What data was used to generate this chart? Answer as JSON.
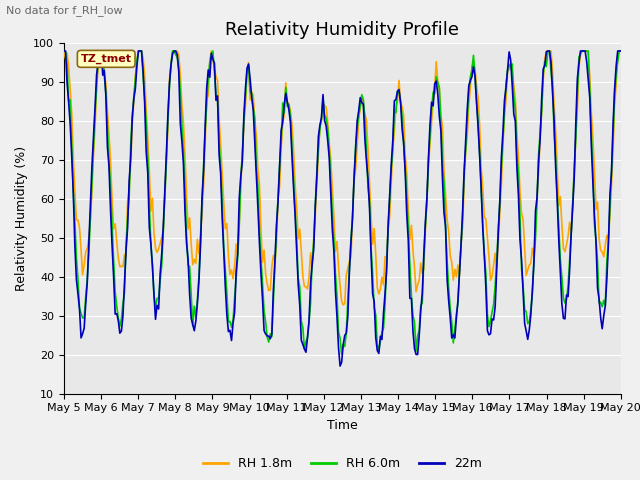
{
  "title": "Relativity Humidity Profile",
  "subtitle": "No data for f_RH_low",
  "xlabel": "Time",
  "ylabel": "Relativity Humidity (%)",
  "ylim": [
    10,
    100
  ],
  "yticks": [
    10,
    20,
    30,
    40,
    50,
    60,
    70,
    80,
    90,
    100
  ],
  "xtick_labels": [
    "May 5",
    "May 6",
    "May 7",
    "May 8",
    "May 9",
    "May 10",
    "May 11",
    "May 12",
    "May 13",
    "May 14",
    "May 15",
    "May 16",
    "May 17",
    "May 18",
    "May 19",
    "May 20"
  ],
  "station_label": "TZ_tmet",
  "legend_entries": [
    "RH 1.8m",
    "RH 6.0m",
    "22m"
  ],
  "colors": {
    "RH_1p8m": "#FFA500",
    "RH_6m": "#00CC00",
    "RH_22m": "#0000BB"
  },
  "background_color": "#F0F0F0",
  "plot_background": "#E8E8E8",
  "grid_color": "#FFFFFF",
  "title_fontsize": 13,
  "label_fontsize": 9,
  "tick_fontsize": 8
}
